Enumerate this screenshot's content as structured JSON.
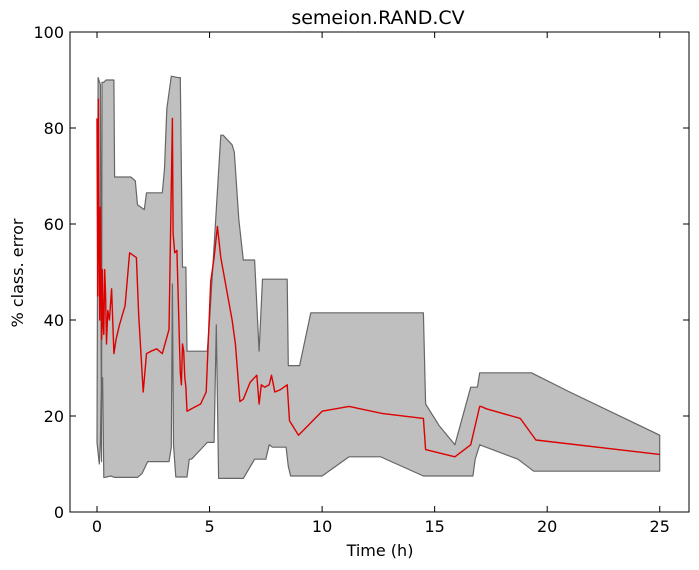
{
  "chart_data": {
    "type": "area",
    "title": "semeion.RAND.CV",
    "xlabel": "Time (h)",
    "ylabel": "% class. error",
    "xlim": [
      -1.2,
      26.3
    ],
    "ylim": [
      0,
      100
    ],
    "xticks": [
      0,
      5,
      10,
      15,
      20,
      25
    ],
    "yticks": [
      0,
      20,
      40,
      60,
      80,
      100
    ],
    "grid": false,
    "colors": {
      "band_fill": "#bfbfbf",
      "band_edge": "#666666",
      "mean_line": "#dd0000"
    },
    "series": [
      {
        "kind": "band-upper",
        "x": [
          0.0,
          0.05,
          0.15,
          0.2,
          0.22,
          0.3,
          0.4,
          0.75,
          0.78,
          1.5,
          1.7,
          1.8,
          2.1,
          2.2,
          2.25,
          2.9,
          3.0,
          3.1,
          3.3,
          3.6,
          3.7,
          3.8,
          3.85,
          3.95,
          4.0,
          4.5,
          4.9,
          5.0,
          5.5,
          5.6,
          6.0,
          6.1,
          6.3,
          6.5,
          7.0,
          7.2,
          7.35,
          8.0,
          8.45,
          8.5,
          8.9,
          9.0,
          9.5,
          13.0,
          14.5,
          14.6,
          15.2,
          15.9,
          16.6,
          16.7,
          16.9,
          17.0,
          19.3,
          21.0,
          25.0
        ],
        "y": [
          14.5,
          90.5,
          89.0,
          10.5,
          89.5,
          89.5,
          90.0,
          90.0,
          69.8,
          69.8,
          69.0,
          64.0,
          63.0,
          66.5,
          66.5,
          66.5,
          71.5,
          84.0,
          90.8,
          90.5,
          90.5,
          51.0,
          51.0,
          51.0,
          33.5,
          33.5,
          33.5,
          40.0,
          78.5,
          78.5,
          76.5,
          75.0,
          61.0,
          52.5,
          52.5,
          33.5,
          48.5,
          48.5,
          48.5,
          30.5,
          30.5,
          30.5,
          41.5,
          41.5,
          41.5,
          22.5,
          18.0,
          14.0,
          26.0,
          26.0,
          26.0,
          29.0,
          29.0,
          25.0,
          16.0
        ]
      },
      {
        "kind": "band-lower",
        "x": [
          0.0,
          0.1,
          0.15,
          0.2,
          0.25,
          0.3,
          0.35,
          0.6,
          0.8,
          1.8,
          2.0,
          2.25,
          3.2,
          3.3,
          3.35,
          3.4,
          3.5,
          3.6,
          4.0,
          4.1,
          4.2,
          4.5,
          4.9,
          5.2,
          5.3,
          5.4,
          5.5,
          6.0,
          6.5,
          7.0,
          7.5,
          7.65,
          7.8,
          8.4,
          8.5,
          8.6,
          10.0,
          11.2,
          12.6,
          14.5,
          15.9,
          16.7,
          16.8,
          17.0,
          18.7,
          19.4,
          21.0,
          25.0
        ],
        "y": [
          14.5,
          10.0,
          14.5,
          28.0,
          28.0,
          7.2,
          7.2,
          7.5,
          7.2,
          7.2,
          8.0,
          10.5,
          10.5,
          13.5,
          47.5,
          14.0,
          7.3,
          7.3,
          7.3,
          11.0,
          11.0,
          12.5,
          14.5,
          14.5,
          39.0,
          7.0,
          7.0,
          7.0,
          7.0,
          11.0,
          11.0,
          14.0,
          13.5,
          13.5,
          9.5,
          7.5,
          7.5,
          11.5,
          11.5,
          7.5,
          7.5,
          7.5,
          11.0,
          14.0,
          11.0,
          8.5,
          8.5,
          8.5
        ]
      },
      {
        "kind": "mean",
        "x": [
          0.0,
          0.03,
          0.06,
          0.09,
          0.12,
          0.15,
          0.18,
          0.21,
          0.24,
          0.27,
          0.3,
          0.34,
          0.38,
          0.42,
          0.48,
          0.55,
          0.65,
          0.75,
          0.85,
          1.0,
          1.25,
          1.45,
          1.75,
          1.85,
          2.05,
          2.2,
          2.4,
          2.65,
          2.9,
          3.2,
          3.35,
          3.38,
          3.45,
          3.55,
          3.7,
          3.75,
          3.8,
          3.85,
          3.9,
          3.95,
          4.0,
          4.2,
          4.6,
          4.85,
          5.05,
          5.2,
          5.35,
          5.5,
          6.0,
          6.15,
          6.35,
          6.5,
          6.8,
          7.1,
          7.2,
          7.3,
          7.45,
          7.65,
          7.75,
          7.9,
          8.15,
          8.45,
          8.55,
          8.75,
          8.95,
          10.0,
          11.2,
          12.7,
          14.5,
          14.6,
          15.9,
          16.6,
          16.8,
          17.0,
          17.05,
          17.3,
          18.8,
          19.5,
          25.0
        ],
        "y": [
          82.0,
          45.0,
          86.0,
          60.0,
          40.0,
          63.5,
          46.0,
          36.0,
          50.5,
          39.0,
          37.0,
          50.5,
          45.0,
          35.0,
          42.0,
          40.0,
          46.5,
          33.0,
          36.0,
          39.0,
          43.0,
          54.0,
          53.0,
          41.0,
          25.0,
          33.0,
          33.5,
          34.0,
          33.0,
          38.0,
          82.0,
          58.0,
          54.0,
          54.5,
          29.0,
          26.5,
          35.0,
          33.5,
          28.0,
          26.0,
          21.0,
          21.5,
          22.5,
          25.0,
          48.0,
          53.0,
          59.5,
          53.0,
          40.0,
          35.0,
          23.0,
          23.5,
          27.0,
          28.5,
          22.5,
          26.5,
          26.0,
          26.5,
          28.5,
          25.0,
          25.5,
          26.5,
          19.0,
          17.5,
          16.0,
          21.0,
          22.0,
          20.5,
          19.5,
          13.0,
          11.5,
          14.0,
          18.0,
          22.0,
          22.0,
          21.5,
          19.5,
          15.0,
          12.0
        ]
      }
    ]
  }
}
